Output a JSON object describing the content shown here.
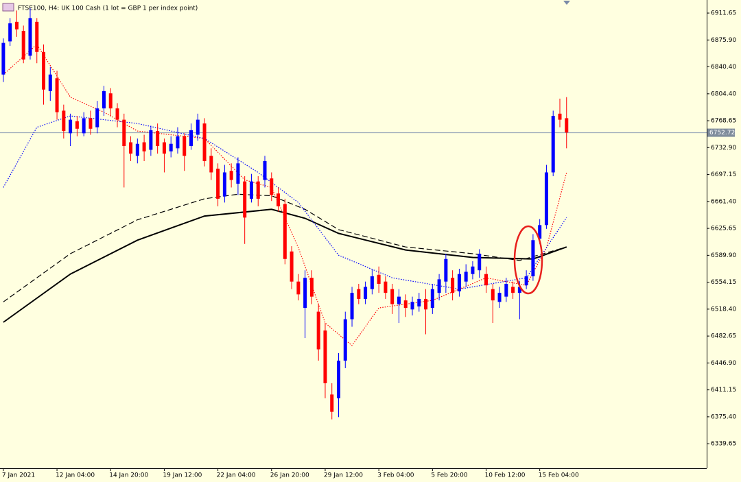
{
  "chart_data": {
    "type": "candlestick",
    "title": "FTSE100, H4:  UK 100 Cash (1 lot = GBP 1 per index point)",
    "ylim": [
      6307,
      6929
    ],
    "yticks": [
      6911.65,
      {
        "value": 6875.9,
        "label": "6875.90"
      },
      {
        "value": 6840.4,
        "label": "6840.40"
      },
      {
        "value": 6804.4,
        "label": "6804.40"
      },
      6768.65,
      {
        "value": 6732.9,
        "label": "6732.90"
      },
      6697.15,
      {
        "value": 6661.4,
        "label": "6661.40"
      },
      6625.65,
      {
        "value": 6589.9,
        "label": "6589.90"
      },
      6554.15,
      {
        "value": 6518.4,
        "label": "6518.40"
      },
      6482.65,
      {
        "value": 6446.9,
        "label": "6446.90"
      },
      6411.15,
      {
        "value": 6375.4,
        "label": "6375.40"
      },
      6339.65
    ],
    "xlim": [
      -0.5,
      104.9
    ],
    "xticks": [
      {
        "value": 0,
        "label": "7 Jan 2021"
      },
      {
        "value": 8,
        "label": "12 Jan 04:00"
      },
      {
        "value": 16,
        "label": "14 Jan 20:00"
      },
      {
        "value": 24,
        "label": "19 Jan 12:00"
      },
      {
        "value": 32,
        "label": "22 Jan 04:00"
      },
      {
        "value": 40,
        "label": "26 Jan 20:00"
      },
      {
        "value": 48,
        "label": "29 Jan 12:00"
      },
      {
        "value": 56,
        "label": "3 Feb 04:00"
      },
      {
        "value": 64,
        "label": "5 Feb 20:00"
      },
      {
        "value": 72,
        "label": "10 Feb 12:00"
      },
      {
        "value": 80,
        "label": "15 Feb 04:00"
      }
    ],
    "up_color": "#0000ff",
    "down_color": "#ff0000",
    "ohlc": [
      [
        6830,
        6878,
        6820,
        6872
      ],
      [
        6874,
        6905,
        6868,
        6898
      ],
      [
        6900,
        6915,
        6880,
        6890
      ],
      [
        6888,
        6895,
        6845,
        6850
      ],
      [
        6855,
        6918,
        6850,
        6905
      ],
      [
        6900,
        6905,
        6845,
        6860
      ],
      [
        6860,
        6870,
        6790,
        6810
      ],
      [
        6808,
        6840,
        6795,
        6830
      ],
      [
        6825,
        6835,
        6770,
        6780
      ],
      [
        6782,
        6790,
        6745,
        6755
      ],
      [
        6752,
        6778,
        6735,
        6770
      ],
      [
        6768,
        6775,
        6748,
        6758
      ],
      [
        6752,
        6780,
        6748,
        6772
      ],
      [
        6772,
        6782,
        6750,
        6758
      ],
      [
        6760,
        6795,
        6752,
        6785
      ],
      [
        6785,
        6815,
        6775,
        6808
      ],
      [
        6805,
        6812,
        6775,
        6785
      ],
      [
        6785,
        6792,
        6760,
        6770
      ],
      [
        6770,
        6778,
        6680,
        6735
      ],
      [
        6740,
        6748,
        6715,
        6725
      ],
      [
        6722,
        6745,
        6712,
        6738
      ],
      [
        6740,
        6750,
        6715,
        6728
      ],
      [
        6730,
        6762,
        6722,
        6756
      ],
      [
        6755,
        6765,
        6725,
        6735
      ],
      [
        6740,
        6745,
        6700,
        6725
      ],
      [
        6728,
        6748,
        6720,
        6738
      ],
      [
        6732,
        6760,
        6725,
        6748
      ],
      [
        6748,
        6752,
        6702,
        6722
      ],
      [
        6735,
        6765,
        6730,
        6756
      ],
      [
        6750,
        6778,
        6742,
        6770
      ],
      [
        6765,
        6772,
        6708,
        6715
      ],
      [
        6722,
        6732,
        6690,
        6700
      ],
      [
        6705,
        6712,
        6655,
        6665
      ],
      [
        6668,
        6710,
        6660,
        6700
      ],
      [
        6702,
        6712,
        6680,
        6690
      ],
      [
        6685,
        6720,
        6670,
        6712
      ],
      [
        6688,
        6695,
        6605,
        6640
      ],
      [
        6665,
        6698,
        6660,
        6688
      ],
      [
        6688,
        6695,
        6655,
        6665
      ],
      [
        6690,
        6722,
        6680,
        6715
      ],
      [
        6692,
        6700,
        6662,
        6670
      ],
      [
        6672,
        6680,
        6648,
        6655
      ],
      [
        6658,
        6665,
        6578,
        6585
      ],
      [
        6595,
        6602,
        6545,
        6555
      ],
      [
        6555,
        6565,
        6530,
        6538
      ],
      [
        6520,
        6570,
        6480,
        6560
      ],
      [
        6560,
        6570,
        6525,
        6535
      ],
      [
        6515,
        6525,
        6450,
        6465
      ],
      [
        6490,
        6500,
        6400,
        6420
      ],
      [
        6405,
        6420,
        6372,
        6382
      ],
      [
        6400,
        6460,
        6375,
        6450
      ],
      [
        6450,
        6515,
        6440,
        6505
      ],
      [
        6505,
        6548,
        6495,
        6540
      ],
      [
        6545,
        6552,
        6525,
        6532
      ],
      [
        6532,
        6555,
        6525,
        6548
      ],
      [
        6545,
        6572,
        6538,
        6562
      ],
      [
        6564,
        6575,
        6540,
        6552
      ],
      [
        6555,
        6562,
        6532,
        6540
      ],
      [
        6545,
        6552,
        6512,
        6525
      ],
      [
        6525,
        6545,
        6500,
        6535
      ],
      [
        6530,
        6538,
        6508,
        6520
      ],
      [
        6518,
        6535,
        6510,
        6528
      ],
      [
        6522,
        6540,
        6515,
        6532
      ],
      [
        6532,
        6545,
        6485,
        6518
      ],
      [
        6520,
        6552,
        6512,
        6545
      ],
      [
        6540,
        6565,
        6530,
        6558
      ],
      [
        6555,
        6592,
        6540,
        6585
      ],
      [
        6560,
        6570,
        6530,
        6540
      ],
      [
        6542,
        6572,
        6535,
        6565
      ],
      [
        6555,
        6578,
        6548,
        6568
      ],
      [
        6565,
        6582,
        6558,
        6575
      ],
      [
        6570,
        6598,
        6560,
        6592
      ],
      [
        6565,
        6575,
        6540,
        6550
      ],
      [
        6545,
        6552,
        6500,
        6530
      ],
      [
        6528,
        6548,
        6520,
        6540
      ],
      [
        6535,
        6560,
        6528,
        6552
      ],
      [
        6548,
        6555,
        6532,
        6540
      ],
      [
        6540,
        6556,
        6505,
        6548
      ],
      [
        6550,
        6570,
        6545,
        6562
      ],
      [
        6562,
        6618,
        6556,
        6610
      ],
      [
        6612,
        6638,
        6605,
        6630
      ],
      [
        6630,
        6710,
        6625,
        6700
      ],
      [
        6700,
        6782,
        6695,
        6775
      ],
      [
        6778,
        6798,
        6760,
        6770
      ],
      [
        6772,
        6800,
        6732,
        6753
      ]
    ],
    "lines": [
      {
        "color": "#000000",
        "style": "solid",
        "x": [
          0,
          10,
          20,
          30,
          40,
          45,
          50,
          60,
          70,
          79,
          84
        ],
        "values": [
          6501,
          6565,
          6610,
          6642,
          6651,
          6639,
          6619,
          6597,
          6587,
          6585,
          6601
        ]
      },
      {
        "color": "#000000",
        "style": "dashed",
        "x": [
          0,
          10,
          20,
          30,
          35,
          40,
          45,
          50,
          60,
          70,
          77,
          84
        ],
        "values": [
          6528,
          6592,
          6637,
          6665,
          6671,
          6669,
          6651,
          6624,
          6601,
          6592,
          6583,
          6601
        ]
      },
      {
        "color": "#ff0000",
        "style": "dotted",
        "x": [
          0,
          5,
          10,
          15,
          20,
          30,
          36,
          40,
          44,
          48,
          52,
          56,
          64,
          72,
          78,
          81,
          84
        ],
        "values": [
          6830,
          6870,
          6800,
          6780,
          6755,
          6745,
          6690,
          6680,
          6600,
          6500,
          6470,
          6520,
          6530,
          6560,
          6550,
          6600,
          6700
        ]
      },
      {
        "color": "#0000ff",
        "style": "dotted",
        "x": [
          0,
          5,
          10,
          20,
          30,
          38,
          44,
          50,
          58,
          68,
          78,
          84
        ],
        "values": [
          6680,
          6760,
          6775,
          6765,
          6745,
          6700,
          6660,
          6590,
          6560,
          6545,
          6560,
          6640
        ]
      }
    ],
    "current_price": 6752.72
  }
}
